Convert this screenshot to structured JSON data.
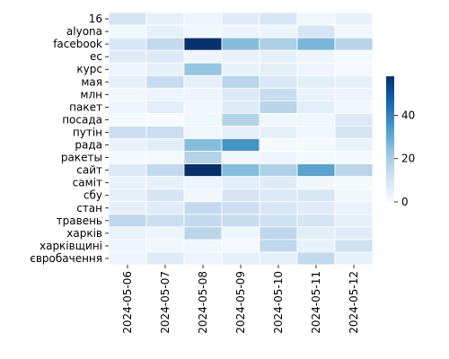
{
  "chart_data": {
    "type": "heatmap",
    "title": "",
    "xlabel": "",
    "ylabel": "",
    "x": [
      "2024-05-06",
      "2024-05-07",
      "2024-05-08",
      "2024-05-09",
      "2024-05-10",
      "2024-05-11",
      "2024-05-12"
    ],
    "y": [
      "16",
      "alyona",
      "facebook",
      "ес",
      "курс",
      "мая",
      "млн",
      "пакет",
      "посада",
      "путін",
      "рада",
      "ракеты",
      "сайт",
      "саміт",
      "сбу",
      "стан",
      "травень",
      "харків",
      "харківщині",
      "євробачення"
    ],
    "values": [
      [
        10,
        5,
        3,
        7,
        9,
        2,
        4
      ],
      [
        2,
        5,
        2,
        3,
        3,
        10,
        2
      ],
      [
        9,
        15,
        58,
        25,
        19,
        27,
        17
      ],
      [
        7,
        8,
        3,
        4,
        5,
        3,
        1
      ],
      [
        3,
        5,
        23,
        4,
        6,
        3,
        1
      ],
      [
        5,
        14,
        5,
        17,
        9,
        6,
        5
      ],
      [
        2,
        3,
        3,
        8,
        14,
        4,
        3
      ],
      [
        3,
        6,
        2,
        7,
        17,
        6,
        2
      ],
      [
        1,
        0,
        2,
        18,
        2,
        2,
        8
      ],
      [
        13,
        13,
        2,
        5,
        5,
        2,
        10
      ],
      [
        4,
        6,
        25,
        36,
        1,
        1,
        4
      ],
      [
        1,
        1,
        18,
        2,
        3,
        1,
        1
      ],
      [
        8,
        15,
        58,
        25,
        19,
        32,
        17
      ],
      [
        4,
        5,
        3,
        6,
        7,
        2,
        1
      ],
      [
        5,
        10,
        2,
        10,
        8,
        9,
        2
      ],
      [
        5,
        7,
        15,
        13,
        9,
        7,
        4
      ],
      [
        16,
        13,
        15,
        14,
        12,
        10,
        5
      ],
      [
        4,
        3,
        17,
        3,
        16,
        6,
        7
      ],
      [
        3,
        2,
        2,
        1,
        16,
        4,
        12
      ],
      [
        3,
        7,
        3,
        5,
        5,
        15,
        4
      ]
    ],
    "vmin": 0,
    "vmax": 58,
    "colormap": "Blues",
    "colorbar_ticks": [
      0,
      20,
      40
    ]
  },
  "colors": {
    "colormap_stops": [
      "#f7fbff",
      "#deebf7",
      "#c6dbef",
      "#9ecae1",
      "#6baed6",
      "#4292c6",
      "#2171b5",
      "#08519c",
      "#08306b"
    ],
    "grid_line": "#ffffff",
    "text": "#000000"
  }
}
